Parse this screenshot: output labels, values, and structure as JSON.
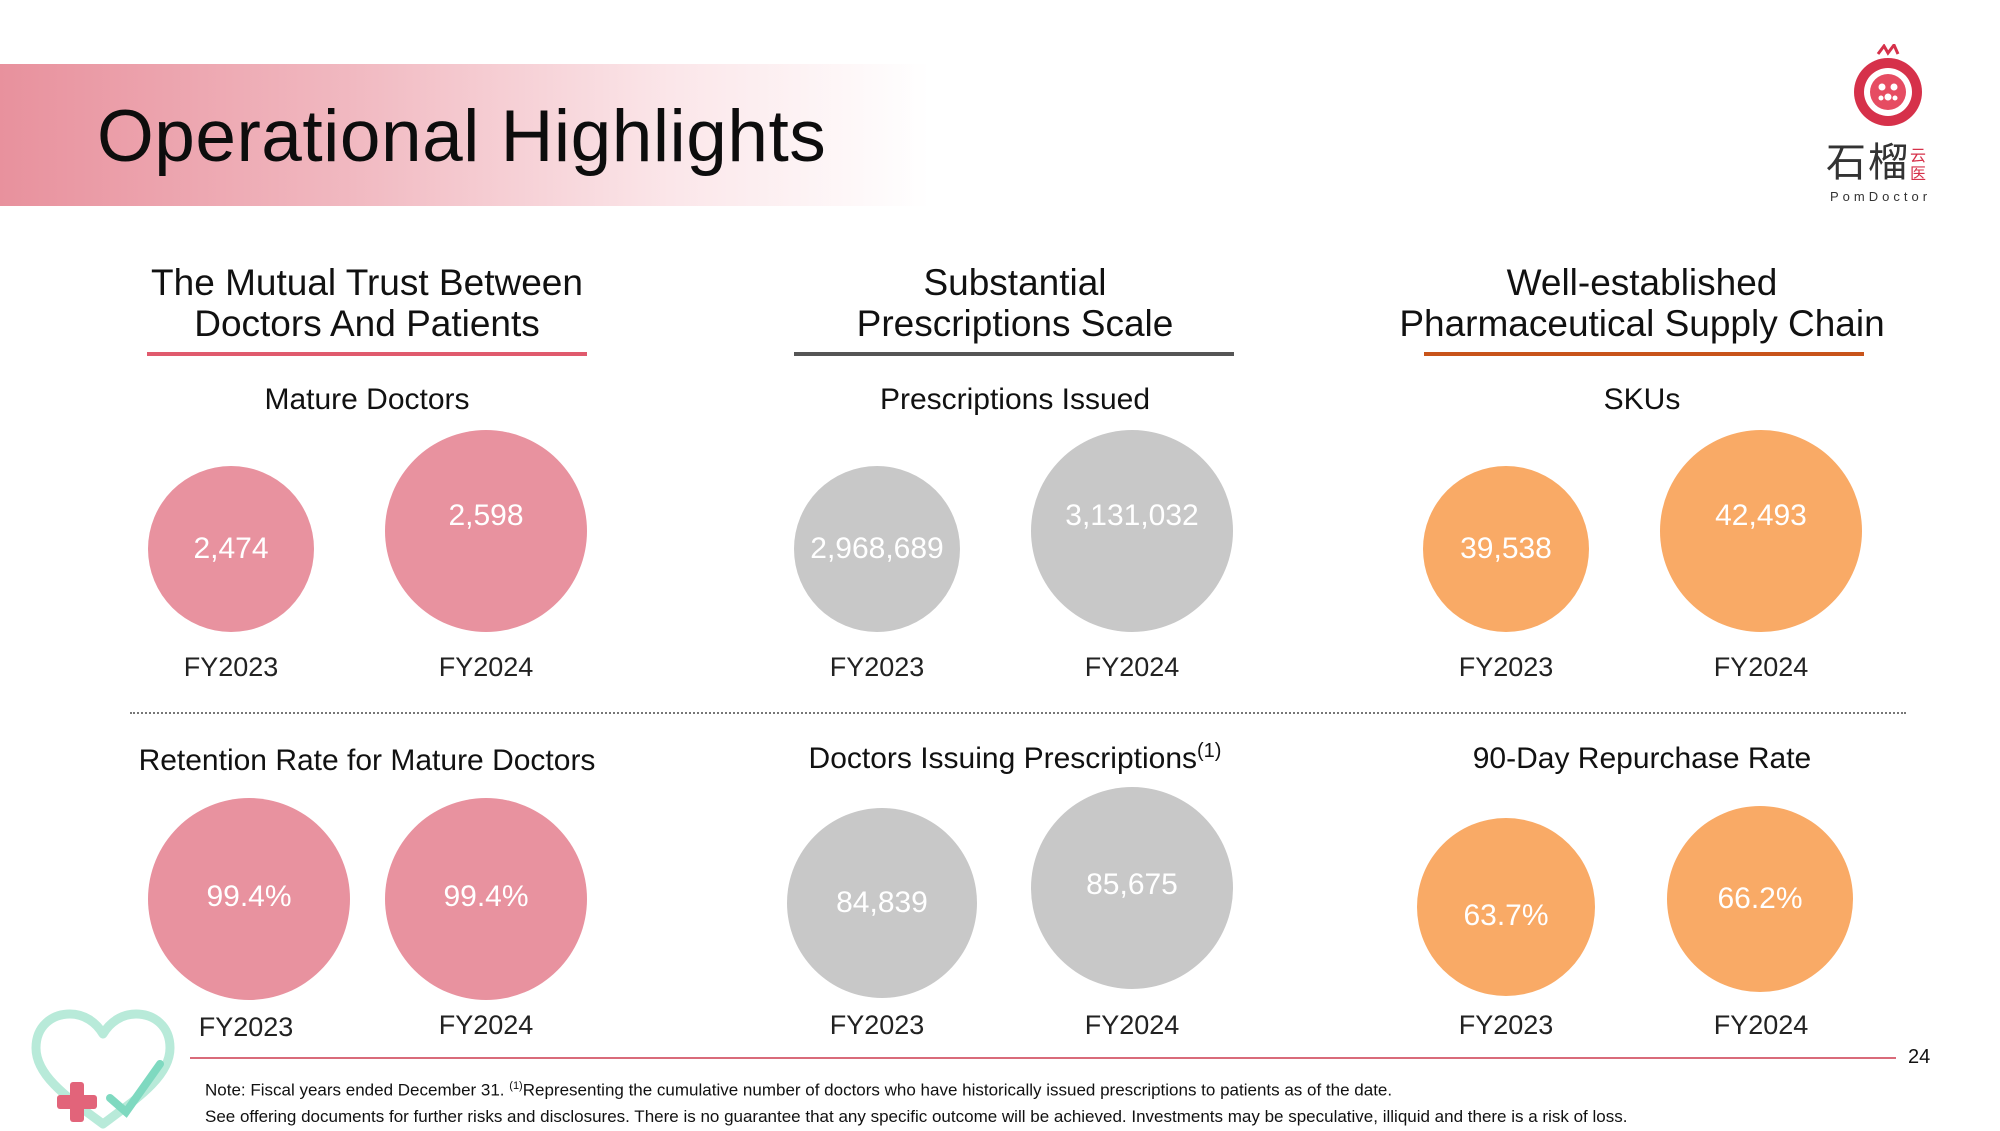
{
  "page": {
    "title": "Operational Highlights",
    "page_number": "24"
  },
  "logo": {
    "text_cn": "石榴",
    "text_cn_small": "云医",
    "text_en": "PomDoctor"
  },
  "columns": [
    {
      "header_line1": "The Mutual Trust Between",
      "header_line2": "Doctors And Patients",
      "underline_color": "#e05a6d",
      "top_metric": {
        "label": "Mature Doctors",
        "fy2023": "2,474",
        "fy2024": "2,598"
      },
      "bottom_metric": {
        "label": "Retention Rate for Mature Doctors",
        "fy2023": "99.4%",
        "fy2024": "99.4%"
      }
    },
    {
      "header_line1": "Substantial",
      "header_line2": "Prescriptions Scale",
      "underline_color": "#555555",
      "top_metric": {
        "label": "Prescriptions Issued",
        "fy2023": "2,968,689",
        "fy2024": "3,131,032"
      },
      "bottom_metric": {
        "label": "Doctors Issuing Prescriptions",
        "label_sup": "(1)",
        "fy2023": "84,839",
        "fy2024": "85,675"
      }
    },
    {
      "header_line1": "Well-established",
      "header_line2": "Pharmaceutical Supply Chain",
      "underline_color": "#c8541a",
      "top_metric": {
        "label": "SKUs",
        "fy2023": "39,538",
        "fy2024": "42,493"
      },
      "bottom_metric": {
        "label": "90-Day Repurchase Rate",
        "fy2023": "63.7%",
        "fy2024": "66.2%"
      }
    }
  ],
  "years": {
    "y1": "FY2023",
    "y2": "FY2024"
  },
  "colors": {
    "pink": "#e8929f",
    "gray": "#c8c8c8",
    "orange": "#f9aa66",
    "footer_line": "#d96b7a"
  },
  "footer": {
    "note_part1": "Note: Fiscal years ended December 31.",
    "note_sup": "(1)",
    "note_part2": "Representing the cumulative number of doctors who have historically issued prescriptions to patients as of the date.",
    "disclaimer": "See offering documents for further risks and disclosures. There is no guarantee that any specific outcome will be achieved. Investments may be speculative, illiquid and there is a risk of loss."
  }
}
